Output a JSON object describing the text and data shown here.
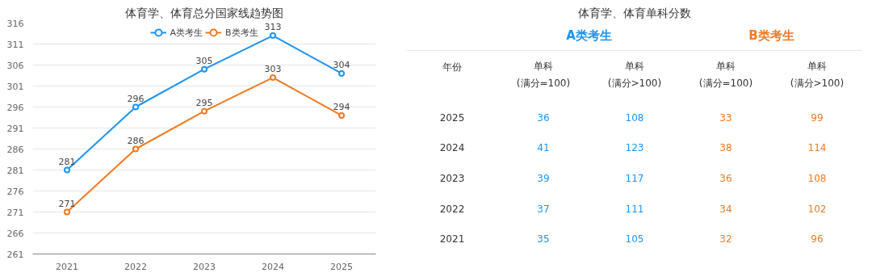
{
  "chart_data": [
    {
      "type": "line",
      "title": "体育学、体育总分国家线趋势图",
      "categories": [
        "2021",
        "2022",
        "2023",
        "2024",
        "2025"
      ],
      "series": [
        {
          "name": "A类考生",
          "color": "#1f93f0",
          "values": [
            281,
            296,
            305,
            313,
            304
          ]
        },
        {
          "name": "B类考生",
          "color": "#f07a22",
          "values": [
            271,
            286,
            295,
            303,
            294
          ]
        }
      ],
      "ylim": [
        261,
        316
      ],
      "yticks": [
        261,
        266,
        271,
        276,
        281,
        286,
        291,
        296,
        301,
        306,
        311,
        316
      ],
      "grid": "y",
      "legend": "top",
      "marker": "circle",
      "line_style": "solid",
      "data_labels": true
    },
    {
      "type": "heatmap",
      "title": "体育学、体育单科分数",
      "ylabel": "年份",
      "categories": [
        "单科\n(满分=100)",
        "单科\n(满分>100)",
        "单科\n(满分=100)",
        "单科\n(满分>100)"
      ],
      "y_categories": [
        "2025",
        "2024",
        "2023",
        "2022",
        "2021"
      ],
      "cells": [
        [
          36,
          108,
          33,
          99
        ],
        [
          41,
          123,
          38,
          114
        ],
        [
          39,
          117,
          36,
          108
        ],
        [
          37,
          111,
          34,
          102
        ],
        [
          35,
          105,
          32,
          96
        ]
      ],
      "colors": [
        "#1f93f0",
        "#1f93f0",
        "#f07a22",
        "#f07a22"
      ],
      "annotations": [
        "A类考生",
        "B类考生"
      ],
      "data_labels": true
    }
  ]
}
